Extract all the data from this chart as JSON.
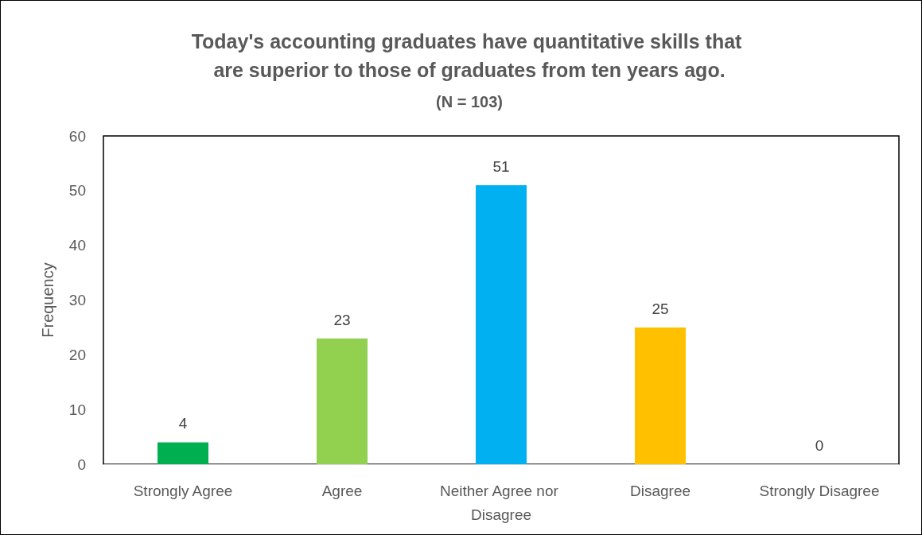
{
  "chart_data": {
    "type": "bar",
    "title": "Today's accounting graduates have quantitative skills that are superior to those of graduates from ten years ago.",
    "subtitle": "(N = 103)",
    "ylabel": "Frequency",
    "categories": [
      "Strongly Agree",
      "Agree",
      "Neither Agree nor Disagree",
      "Disagree",
      "Strongly Disagree"
    ],
    "values": [
      4,
      23,
      51,
      25,
      0
    ],
    "colors": [
      "#00b050",
      "#92d050",
      "#00b0f0",
      "#ffc000",
      "#7f7f7f"
    ],
    "ylim": [
      0,
      60
    ],
    "yticks": [
      0,
      10,
      20,
      30,
      40,
      50,
      60
    ],
    "grid": false,
    "data_labels": true
  }
}
